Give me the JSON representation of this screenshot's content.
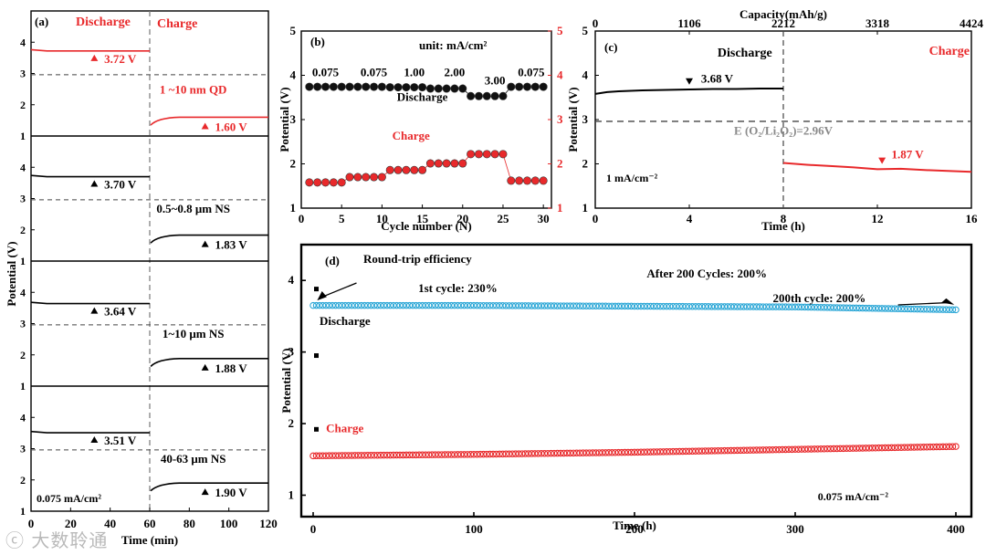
{
  "watermark": "ⓒ 大数聆通",
  "chart_data": [
    {
      "id": "a",
      "type": "line",
      "panel_label": "(a)",
      "xlabel": "Time (min)",
      "ylabel": "Potential (V)",
      "xticks": [
        0,
        20,
        40,
        60,
        80,
        100,
        120
      ],
      "xlim": [
        0,
        120
      ],
      "ylim_each": [
        1,
        5
      ],
      "yticks": [
        1,
        2,
        3,
        4
      ],
      "reference_line_V": 2.96,
      "discharge_label": "Discharge",
      "charge_label": "Charge",
      "current_label": "0.075 mA/cm²",
      "subplots": [
        {
          "name": "1 ~10 nm QD",
          "discharge_V": 3.72,
          "charge_V": 1.6,
          "discharge_text": "3.72 V",
          "charge_text": "1.60 V",
          "color": "#e8292b"
        },
        {
          "name": "0.5~0.8 μm NS",
          "discharge_V": 3.7,
          "charge_V": 1.83,
          "discharge_text": "3.70 V",
          "charge_text": "1.83 V",
          "color": "#000000"
        },
        {
          "name": "1~10 μm NS",
          "discharge_V": 3.64,
          "charge_V": 1.88,
          "discharge_text": "3.64 V",
          "charge_text": "1.88 V",
          "color": "#000000"
        },
        {
          "name": "40-63 μm NS",
          "discharge_V": 3.51,
          "charge_V": 1.9,
          "discharge_text": "3.51 V",
          "charge_text": "1.90 V",
          "color": "#000000"
        }
      ]
    },
    {
      "id": "b",
      "type": "scatter",
      "panel_label": "(b)",
      "unit_text": "unit: mA/cm²",
      "xlabel": "Cycle number (N)",
      "ylabel": "Potential (V)",
      "xlim": [
        0,
        31
      ],
      "xticks": [
        0,
        5,
        10,
        15,
        20,
        25,
        30
      ],
      "ylim": [
        1,
        5
      ],
      "yticks": [
        1,
        2,
        3,
        4,
        5
      ],
      "rate_labels": [
        "0.075",
        "0.075",
        "1.00",
        "2.00",
        "3.00",
        "0.075"
      ],
      "discharge_label": "Discharge",
      "charge_label": "Charge",
      "series": [
        {
          "name": "Discharge",
          "color": "#111111",
          "cycles": [
            1,
            2,
            3,
            4,
            5,
            6,
            7,
            8,
            9,
            10,
            11,
            12,
            13,
            14,
            15,
            16,
            17,
            18,
            19,
            20,
            21,
            22,
            23,
            24,
            25,
            26,
            27,
            28,
            29,
            30
          ],
          "values": [
            3.74,
            3.74,
            3.74,
            3.74,
            3.74,
            3.74,
            3.74,
            3.74,
            3.74,
            3.74,
            3.73,
            3.73,
            3.73,
            3.73,
            3.73,
            3.7,
            3.7,
            3.7,
            3.7,
            3.7,
            3.53,
            3.53,
            3.53,
            3.53,
            3.53,
            3.74,
            3.74,
            3.74,
            3.74,
            3.74
          ]
        },
        {
          "name": "Charge",
          "color": "#e8292b",
          "cycles": [
            1,
            2,
            3,
            4,
            5,
            6,
            7,
            8,
            9,
            10,
            11,
            12,
            13,
            14,
            15,
            16,
            17,
            18,
            19,
            20,
            21,
            22,
            23,
            24,
            25,
            26,
            27,
            28,
            29,
            30
          ],
          "values": [
            1.58,
            1.58,
            1.58,
            1.58,
            1.58,
            1.7,
            1.7,
            1.7,
            1.7,
            1.7,
            1.86,
            1.86,
            1.86,
            1.86,
            1.86,
            2.01,
            2.01,
            2.01,
            2.01,
            2.01,
            2.22,
            2.22,
            2.22,
            2.22,
            2.22,
            1.62,
            1.62,
            1.62,
            1.62,
            1.62
          ]
        }
      ]
    },
    {
      "id": "c",
      "type": "line",
      "panel_label": "(c)",
      "xlabel": "Time (h)",
      "ylabel": "Potential (V)",
      "top_axis_label": "Capacity(mAh/g)",
      "top_ticks": [
        "0",
        "1106",
        "2212",
        "3318",
        "4424"
      ],
      "xlim": [
        0,
        16
      ],
      "xticks": [
        0,
        4,
        8,
        12,
        16
      ],
      "ylim": [
        1,
        5
      ],
      "yticks": [
        1,
        2,
        3,
        4,
        5
      ],
      "reference_line_V": 2.96,
      "reference_text": "E (O₂/Li₂O₂)=2.96V",
      "discharge_label": "Discharge",
      "charge_label": "Charge",
      "current_label": "1 mA/cm⁻²",
      "discharge_value_text": "3.68 V",
      "charge_value_text": "1.87 V",
      "series": [
        {
          "name": "Discharge",
          "color": "#000000",
          "x": [
            0,
            0.5,
            1,
            2,
            3,
            4,
            5,
            6,
            7,
            8
          ],
          "y": [
            3.58,
            3.62,
            3.64,
            3.66,
            3.67,
            3.68,
            3.69,
            3.69,
            3.7,
            3.7
          ]
        },
        {
          "name": "Charge",
          "color": "#e8292b",
          "x": [
            8,
            9,
            10,
            11,
            12,
            13,
            14,
            15,
            16
          ],
          "y": [
            2.02,
            1.98,
            1.95,
            1.92,
            1.88,
            1.89,
            1.86,
            1.84,
            1.82
          ]
        }
      ]
    },
    {
      "id": "d",
      "type": "scatter",
      "panel_label": "(d)",
      "xlabel": "Time (h)",
      "ylabel": "Potential (V)",
      "xlim": [
        0,
        400
      ],
      "xticks": [
        0,
        100,
        200,
        300,
        400
      ],
      "ylim": [
        0.7,
        4.5
      ],
      "yticks": [
        1,
        2,
        3,
        4
      ],
      "title_text": "Round-trip efficiency",
      "after_text": "After 200 Cycles: 200%",
      "first_cycle_text": "1st cycle: 230%",
      "last_cycle_text": "200th cycle: 200%",
      "discharge_label": "Discharge",
      "charge_label": "Charge",
      "current_label": "0.075 mA/cm⁻²",
      "series": [
        {
          "name": "Discharge",
          "color": "#2aa6d6",
          "x": [
            0,
            100,
            200,
            300,
            400
          ],
          "y": [
            3.65,
            3.65,
            3.64,
            3.63,
            3.59
          ]
        },
        {
          "name": "Charge",
          "color": "#e8292b",
          "x": [
            0,
            100,
            200,
            300,
            400
          ],
          "y": [
            1.55,
            1.57,
            1.6,
            1.64,
            1.68
          ]
        }
      ]
    }
  ]
}
